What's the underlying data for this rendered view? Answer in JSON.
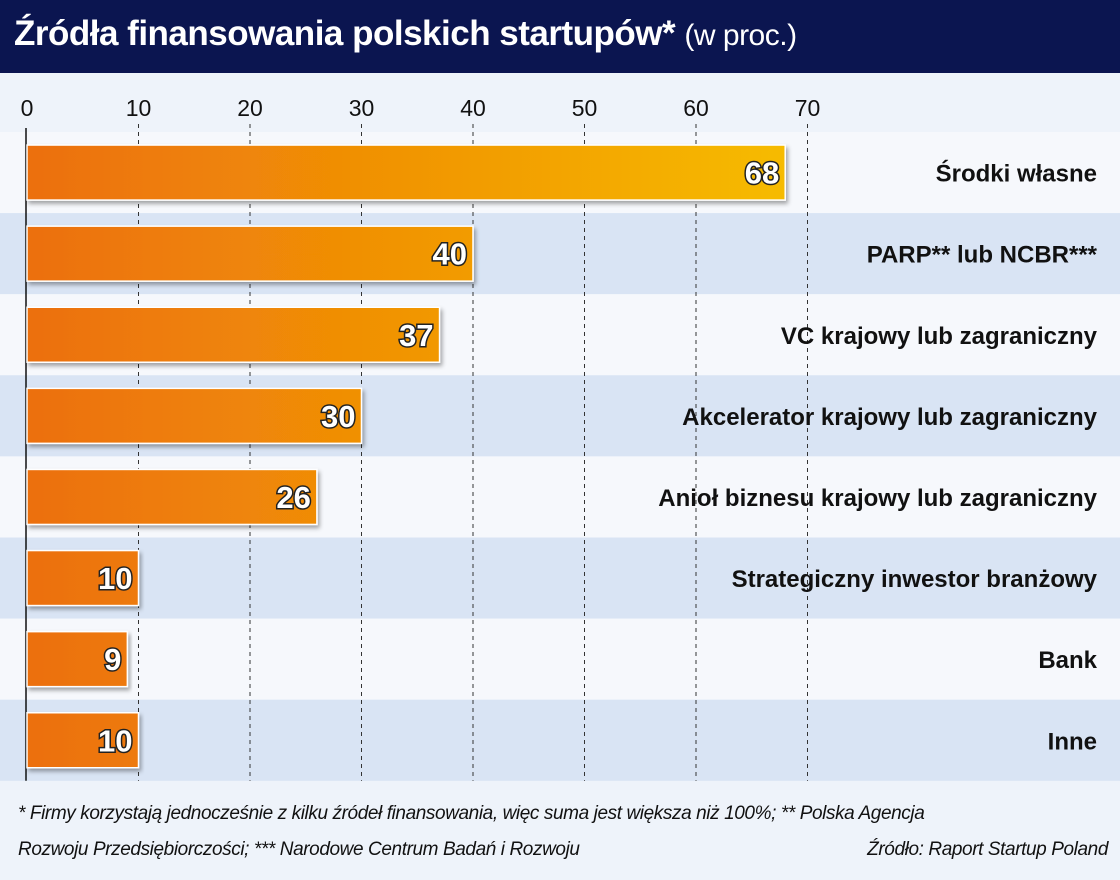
{
  "title": "Źródła finansowania polskich startupów*",
  "title_suffix": "(w proc.)",
  "footnote_line1": "* Firmy korzystają jednocześnie z kilku źródeł finansowania, więc suma jest większa niż 100%; ** Polska Agencja",
  "footnote_line2": "Rozwoju Przedsiębiorczości; *** Narodowe Centrum Badań i Rozwoju",
  "source": "Źródło: Raport Startup Poland",
  "colors": {
    "title_bg": "#0b1550",
    "bar_start": "#ec6f0a",
    "bar_end": "#f6bb00",
    "row_alt": "#d9e4f4"
  },
  "chart_data": {
    "type": "bar",
    "orientation": "horizontal",
    "title": "Źródła finansowania polskich startupów* (w proc.)",
    "categories": [
      "Środki własne",
      "PARP** lub NCBR***",
      "VC krajowy lub zagraniczny",
      "Akcelerator krajowy lub zagraniczny",
      "Anioł biznesu krajowy lub zagraniczny",
      "Strategiczny inwestor branżowy",
      "Bank",
      "Inne"
    ],
    "values": [
      68,
      40,
      37,
      30,
      26,
      10,
      9,
      10
    ],
    "xlim": [
      0,
      70
    ],
    "xticks": [
      0,
      10,
      20,
      30,
      40,
      50,
      60,
      70
    ],
    "grid": true,
    "tick_position": "top"
  }
}
